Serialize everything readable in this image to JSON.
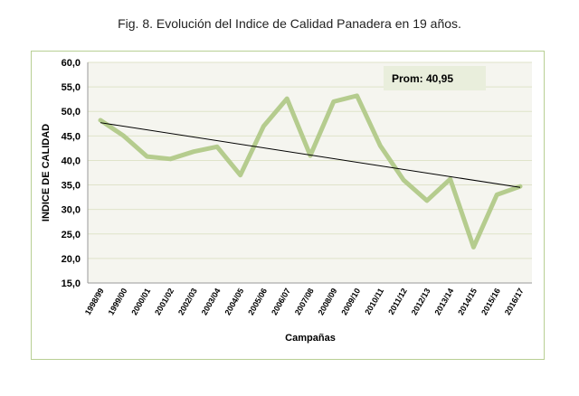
{
  "title": "Fig. 8. Evolución del  Indice de Calidad Panadera en 19 años.",
  "chart_data": {
    "type": "line",
    "xlabel": "Campañas",
    "ylabel": "INDICE DE CALIDAD",
    "ylim": [
      15,
      60
    ],
    "yticks": [
      "15,0",
      "20,0",
      "25,0",
      "30,0",
      "35,0",
      "40,0",
      "45,0",
      "50,0",
      "55,0",
      "60,0"
    ],
    "grid": true,
    "categories": [
      "1998/99",
      "1999/00",
      "2000/01",
      "2001/02",
      "2002/03",
      "2003/04",
      "2004/05",
      "2005/06",
      "2006/07",
      "2007/08",
      "2008/09",
      "2009/10",
      "2010/11",
      "2011/12",
      "2012/13",
      "2013/14",
      "2014/15",
      "2015/16",
      "2016/17"
    ],
    "values": [
      48.2,
      45.0,
      40.8,
      40.3,
      41.8,
      42.8,
      37.0,
      47.0,
      52.6,
      41.0,
      52.0,
      53.2,
      43.0,
      36.0,
      31.8,
      36.2,
      22.3,
      33.0,
      34.7
    ],
    "trendline": {
      "type": "linear",
      "start": 47.7,
      "end": 34.5
    },
    "annotation": "Prom: 40,95",
    "colors": {
      "series": "#b5cc8e",
      "trend": "#000000",
      "plot_bg": "#f5f5ef",
      "grid": "#dfe3c9"
    }
  }
}
